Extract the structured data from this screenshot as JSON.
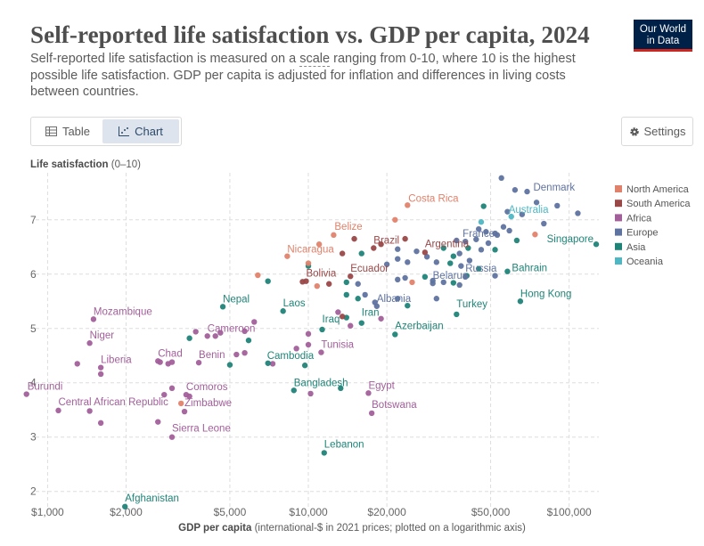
{
  "header": {
    "title": "Self-reported life satisfaction vs. GDP per capita, 2024",
    "subtitle_before": "Self-reported life satisfaction is measured on a ",
    "subtitle_link": "scale",
    "subtitle_after": " ranging from 0-10, where 10 is the highest possible life satisfaction. GDP per capita is adjusted for inflation and differences in living costs between countries.",
    "logo_line1": "Our World",
    "logo_line2": "in Data"
  },
  "toolbar": {
    "table_label": "Table",
    "chart_label": "Chart",
    "settings_label": "Settings"
  },
  "colors": {
    "North America": "#e0826b",
    "South America": "#9a4747",
    "Africa": "#a25f9a",
    "Europe": "#5f73a0",
    "Asia": "#1f8478",
    "Oceania": "#4db7c4"
  },
  "chart_data": {
    "type": "scatter",
    "title": "Self-reported life satisfaction vs. GDP per capita, 2024",
    "ylabel_bold": "Life satisfaction",
    "ylabel_rest": " (0–10)",
    "xlabel_bold": "GDP per capita",
    "xlabel_rest": " (international-$ in 2021 prices; plotted on a logarithmic axis)",
    "x_scale": "log",
    "xlim": [
      900,
      130000
    ],
    "ylim": [
      1.7,
      7.8
    ],
    "x_ticks": [
      1000,
      2000,
      5000,
      10000,
      20000,
      50000,
      100000
    ],
    "x_tick_labels": [
      "$1,000",
      "$2,000",
      "$5,000",
      "$10,000",
      "$20,000",
      "$50,000",
      "$100,000"
    ],
    "y_ticks": [
      2,
      3,
      4,
      5,
      6,
      7
    ],
    "legend_position": "top-right",
    "legend": [
      "North America",
      "South America",
      "Africa",
      "Europe",
      "Asia",
      "Oceania"
    ],
    "points": [
      {
        "label": "Denmark",
        "gdp": 69000,
        "ls": 7.52,
        "region": "Europe"
      },
      {
        "label": "Costa Rica",
        "gdp": 24000,
        "ls": 7.27,
        "region": "North America"
      },
      {
        "label": "Australia",
        "gdp": 60000,
        "ls": 7.06,
        "region": "Oceania"
      },
      {
        "label": "Singapore",
        "gdp": 127000,
        "ls": 6.55,
        "region": "Asia"
      },
      {
        "label": "France",
        "gdp": 53000,
        "ls": 6.72,
        "region": "Europe"
      },
      {
        "label": "Belize",
        "gdp": 12500,
        "ls": 6.72,
        "region": "North America"
      },
      {
        "label": "Brazil",
        "gdp": 17800,
        "ls": 6.48,
        "region": "South America"
      },
      {
        "label": "Argentina",
        "gdp": 28000,
        "ls": 6.4,
        "region": "South America"
      },
      {
        "label": "Nicaragua",
        "gdp": 8300,
        "ls": 6.33,
        "region": "North America"
      },
      {
        "label": "Bahrain",
        "gdp": 58000,
        "ls": 6.05,
        "region": "Asia"
      },
      {
        "label": "Bolivia",
        "gdp": 9800,
        "ls": 5.87,
        "region": "South America"
      },
      {
        "label": "Ecuador",
        "gdp": 14500,
        "ls": 5.96,
        "region": "South America"
      },
      {
        "label": "Belarus",
        "gdp": 30000,
        "ls": 5.83,
        "region": "Europe"
      },
      {
        "label": "Russia",
        "gdp": 40000,
        "ls": 5.95,
        "region": "Europe"
      },
      {
        "label": "Hong Kong",
        "gdp": 65000,
        "ls": 5.5,
        "region": "Asia"
      },
      {
        "label": "Albania",
        "gdp": 18300,
        "ls": 5.41,
        "region": "Europe"
      },
      {
        "label": "Turkey",
        "gdp": 37000,
        "ls": 5.26,
        "region": "Asia"
      },
      {
        "label": "Laos",
        "gdp": 8000,
        "ls": 5.32,
        "region": "Asia"
      },
      {
        "label": "Nepal",
        "gdp": 4700,
        "ls": 5.4,
        "region": "Asia"
      },
      {
        "label": "Mozambique",
        "gdp": 1500,
        "ls": 5.17,
        "region": "Africa"
      },
      {
        "label": "Iran",
        "gdp": 16000,
        "ls": 5.1,
        "region": "Asia"
      },
      {
        "label": "Iraq",
        "gdp": 11300,
        "ls": 4.98,
        "region": "Asia"
      },
      {
        "label": "Azerbaijan",
        "gdp": 21500,
        "ls": 4.89,
        "region": "Asia"
      },
      {
        "label": "Cameroon",
        "gdp": 4100,
        "ls": 4.86,
        "region": "Africa"
      },
      {
        "label": "Niger",
        "gdp": 1450,
        "ls": 4.73,
        "region": "Africa"
      },
      {
        "label": "Tunisia",
        "gdp": 11200,
        "ls": 4.56,
        "region": "Africa"
      },
      {
        "label": "Chad",
        "gdp": 2650,
        "ls": 4.4,
        "region": "Africa"
      },
      {
        "label": "Benin",
        "gdp": 3800,
        "ls": 4.37,
        "region": "Africa"
      },
      {
        "label": "Cambodia",
        "gdp": 7000,
        "ls": 4.36,
        "region": "Asia"
      },
      {
        "label": "Liberia",
        "gdp": 1600,
        "ls": 4.28,
        "region": "Africa"
      },
      {
        "label": "Bangladesh",
        "gdp": 8800,
        "ls": 3.86,
        "region": "Asia"
      },
      {
        "label": "Egypt",
        "gdp": 17000,
        "ls": 3.81,
        "region": "Africa"
      },
      {
        "label": "Comoros",
        "gdp": 3400,
        "ls": 3.78,
        "region": "Africa"
      },
      {
        "label": "Burundi",
        "gdp": 830,
        "ls": 3.79,
        "region": "Africa"
      },
      {
        "label": "Central African Republic",
        "gdp": 1100,
        "ls": 3.49,
        "region": "Africa"
      },
      {
        "label": "Zimbabwe",
        "gdp": 3350,
        "ls": 3.47,
        "region": "Africa"
      },
      {
        "label": "Botswana",
        "gdp": 17500,
        "ls": 3.44,
        "region": "Africa"
      },
      {
        "label": "Sierra Leone",
        "gdp": 3000,
        "ls": 3.0,
        "region": "Africa"
      },
      {
        "label": "Lebanon",
        "gdp": 11500,
        "ls": 2.71,
        "region": "Asia"
      },
      {
        "label": "Afghanistan",
        "gdp": 1980,
        "ls": 1.72,
        "region": "Asia"
      },
      {
        "label": "",
        "gdp": 55000,
        "ls": 7.77,
        "region": "Europe"
      },
      {
        "label": "",
        "gdp": 62000,
        "ls": 7.55,
        "region": "Europe"
      },
      {
        "label": "",
        "gdp": 90000,
        "ls": 7.26,
        "region": "Europe"
      },
      {
        "label": "",
        "gdp": 75000,
        "ls": 7.32,
        "region": "Europe"
      },
      {
        "label": "",
        "gdp": 58000,
        "ls": 7.15,
        "region": "Europe"
      },
      {
        "label": "",
        "gdp": 66000,
        "ls": 7.1,
        "region": "Europe"
      },
      {
        "label": "",
        "gdp": 108000,
        "ls": 7.12,
        "region": "Europe"
      },
      {
        "label": "",
        "gdp": 47000,
        "ls": 7.25,
        "region": "Asia"
      },
      {
        "label": "",
        "gdp": 46000,
        "ls": 6.96,
        "region": "Oceania"
      },
      {
        "label": "",
        "gdp": 56000,
        "ls": 6.87,
        "region": "Europe"
      },
      {
        "label": "",
        "gdp": 45000,
        "ls": 6.83,
        "region": "Europe"
      },
      {
        "label": "",
        "gdp": 48000,
        "ls": 6.78,
        "region": "Europe"
      },
      {
        "label": "",
        "gdp": 52000,
        "ls": 6.75,
        "region": "Europe"
      },
      {
        "label": "",
        "gdp": 59000,
        "ls": 6.8,
        "region": "Europe"
      },
      {
        "label": "",
        "gdp": 74000,
        "ls": 6.73,
        "region": "North America"
      },
      {
        "label": "",
        "gdp": 80000,
        "ls": 6.93,
        "region": "Europe"
      },
      {
        "label": "",
        "gdp": 63000,
        "ls": 6.62,
        "region": "Asia"
      },
      {
        "label": "",
        "gdp": 44000,
        "ls": 6.64,
        "region": "Europe"
      },
      {
        "label": "",
        "gdp": 40000,
        "ls": 6.6,
        "region": "Europe"
      },
      {
        "label": "",
        "gdp": 37000,
        "ls": 6.62,
        "region": "Europe"
      },
      {
        "label": "",
        "gdp": 49000,
        "ls": 6.57,
        "region": "Europe"
      },
      {
        "label": "",
        "gdp": 41000,
        "ls": 6.48,
        "region": "Asia"
      },
      {
        "label": "",
        "gdp": 46000,
        "ls": 6.45,
        "region": "Europe"
      },
      {
        "label": "",
        "gdp": 33000,
        "ls": 6.48,
        "region": "Asia"
      },
      {
        "label": "",
        "gdp": 22000,
        "ls": 6.46,
        "region": "Europe"
      },
      {
        "label": "",
        "gdp": 52000,
        "ls": 6.45,
        "region": "Asia"
      },
      {
        "label": "",
        "gdp": 38000,
        "ls": 6.38,
        "region": "Europe"
      },
      {
        "label": "",
        "gdp": 26000,
        "ls": 6.42,
        "region": "Europe"
      },
      {
        "label": "",
        "gdp": 36000,
        "ls": 6.33,
        "region": "Asia"
      },
      {
        "label": "",
        "gdp": 41500,
        "ls": 6.25,
        "region": "Europe"
      },
      {
        "label": "",
        "gdp": 28500,
        "ls": 6.32,
        "region": "Europe"
      },
      {
        "label": "",
        "gdp": 35000,
        "ls": 6.2,
        "region": "Asia"
      },
      {
        "label": "",
        "gdp": 31000,
        "ls": 6.22,
        "region": "Europe"
      },
      {
        "label": "",
        "gdp": 38500,
        "ls": 6.15,
        "region": "Europe"
      },
      {
        "label": "",
        "gdp": 45000,
        "ls": 6.1,
        "region": "Asia"
      },
      {
        "label": "",
        "gdp": 24000,
        "ls": 6.22,
        "region": "Europe"
      },
      {
        "label": "",
        "gdp": 22000,
        "ls": 6.28,
        "region": "Europe"
      },
      {
        "label": "",
        "gdp": 20000,
        "ls": 6.18,
        "region": "Europe"
      },
      {
        "label": "",
        "gdp": 52000,
        "ls": 5.97,
        "region": "Europe"
      },
      {
        "label": "",
        "gdp": 40500,
        "ls": 5.97,
        "region": "Asia"
      },
      {
        "label": "",
        "gdp": 23500,
        "ls": 5.93,
        "region": "Europe"
      },
      {
        "label": "",
        "gdp": 22000,
        "ls": 5.9,
        "region": "Europe"
      },
      {
        "label": "",
        "gdp": 28000,
        "ls": 5.95,
        "region": "Asia"
      },
      {
        "label": "",
        "gdp": 33000,
        "ls": 5.85,
        "region": "Europe"
      },
      {
        "label": "",
        "gdp": 30000,
        "ls": 5.88,
        "region": "Europe"
      },
      {
        "label": "",
        "gdp": 36000,
        "ls": 5.84,
        "region": "Asia"
      },
      {
        "label": "",
        "gdp": 25000,
        "ls": 5.85,
        "region": "North America"
      },
      {
        "label": "",
        "gdp": 38000,
        "ls": 5.8,
        "region": "Europe"
      },
      {
        "label": "",
        "gdp": 16000,
        "ls": 6.38,
        "region": "Asia"
      },
      {
        "label": "",
        "gdp": 13500,
        "ls": 6.38,
        "region": "South America"
      },
      {
        "label": "",
        "gdp": 10000,
        "ls": 6.15,
        "region": "Asia"
      },
      {
        "label": "",
        "gdp": 10000,
        "ls": 6.2,
        "region": "North America"
      },
      {
        "label": "",
        "gdp": 19000,
        "ls": 6.55,
        "region": "South America"
      },
      {
        "label": "",
        "gdp": 21500,
        "ls": 7.0,
        "region": "North America"
      },
      {
        "label": "",
        "gdp": 23500,
        "ls": 6.65,
        "region": "South America"
      },
      {
        "label": "",
        "gdp": 15000,
        "ls": 6.65,
        "region": "South America"
      },
      {
        "label": "",
        "gdp": 11000,
        "ls": 6.55,
        "region": "North America"
      },
      {
        "label": "",
        "gdp": 6400,
        "ls": 5.98,
        "region": "North America"
      },
      {
        "label": "",
        "gdp": 7000,
        "ls": 5.87,
        "region": "Asia"
      },
      {
        "label": "",
        "gdp": 9500,
        "ls": 5.86,
        "region": "South America"
      },
      {
        "label": "",
        "gdp": 10800,
        "ls": 5.78,
        "region": "North America"
      },
      {
        "label": "",
        "gdp": 12000,
        "ls": 5.82,
        "region": "South America"
      },
      {
        "label": "",
        "gdp": 14000,
        "ls": 5.85,
        "region": "Asia"
      },
      {
        "label": "",
        "gdp": 15500,
        "ls": 5.82,
        "region": "Europe"
      },
      {
        "label": "",
        "gdp": 16500,
        "ls": 5.62,
        "region": "Europe"
      },
      {
        "label": "",
        "gdp": 14000,
        "ls": 5.62,
        "region": "Asia"
      },
      {
        "label": "",
        "gdp": 15500,
        "ls": 5.55,
        "region": "Asia"
      },
      {
        "label": "",
        "gdp": 18000,
        "ls": 5.48,
        "region": "Europe"
      },
      {
        "label": "",
        "gdp": 22000,
        "ls": 5.55,
        "region": "Europe"
      },
      {
        "label": "",
        "gdp": 24000,
        "ls": 5.42,
        "region": "Asia"
      },
      {
        "label": "",
        "gdp": 31000,
        "ls": 5.55,
        "region": "Europe"
      },
      {
        "label": "",
        "gdp": 13000,
        "ls": 5.3,
        "region": "Africa"
      },
      {
        "label": "",
        "gdp": 14000,
        "ls": 5.2,
        "region": "Asia"
      },
      {
        "label": "",
        "gdp": 13500,
        "ls": 5.22,
        "region": "South America"
      },
      {
        "label": "",
        "gdp": 14500,
        "ls": 5.05,
        "region": "Africa"
      },
      {
        "label": "",
        "gdp": 19000,
        "ls": 5.18,
        "region": "Africa"
      },
      {
        "label": "",
        "gdp": 6200,
        "ls": 5.12,
        "region": "Africa"
      },
      {
        "label": "",
        "gdp": 5700,
        "ls": 4.95,
        "region": "Africa"
      },
      {
        "label": "",
        "gdp": 4600,
        "ls": 4.92,
        "region": "Africa"
      },
      {
        "label": "",
        "gdp": 3700,
        "ls": 4.94,
        "region": "Africa"
      },
      {
        "label": "",
        "gdp": 3500,
        "ls": 4.82,
        "region": "Asia"
      },
      {
        "label": "",
        "gdp": 4400,
        "ls": 4.86,
        "region": "Africa"
      },
      {
        "label": "",
        "gdp": 5900,
        "ls": 4.78,
        "region": "Asia"
      },
      {
        "label": "",
        "gdp": 10000,
        "ls": 4.9,
        "region": "Africa"
      },
      {
        "label": "",
        "gdp": 10000,
        "ls": 4.7,
        "region": "Africa"
      },
      {
        "label": "",
        "gdp": 9000,
        "ls": 4.63,
        "region": "Africa"
      },
      {
        "label": "",
        "gdp": 5300,
        "ls": 4.52,
        "region": "Africa"
      },
      {
        "label": "",
        "gdp": 5700,
        "ls": 4.55,
        "region": "Africa"
      },
      {
        "label": "",
        "gdp": 2700,
        "ls": 4.38,
        "region": "Africa"
      },
      {
        "label": "",
        "gdp": 2900,
        "ls": 4.35,
        "region": "Africa"
      },
      {
        "label": "",
        "gdp": 3000,
        "ls": 4.38,
        "region": "Africa"
      },
      {
        "label": "",
        "gdp": 1300,
        "ls": 4.35,
        "region": "Africa"
      },
      {
        "label": "",
        "gdp": 1600,
        "ls": 4.16,
        "region": "Africa"
      },
      {
        "label": "",
        "gdp": 5000,
        "ls": 4.33,
        "region": "Asia"
      },
      {
        "label": "",
        "gdp": 7300,
        "ls": 4.35,
        "region": "Africa"
      },
      {
        "label": "",
        "gdp": 9700,
        "ls": 4.32,
        "region": "Asia"
      },
      {
        "label": "",
        "gdp": 2800,
        "ls": 3.78,
        "region": "Africa"
      },
      {
        "label": "",
        "gdp": 3000,
        "ls": 3.9,
        "region": "Africa"
      },
      {
        "label": "",
        "gdp": 3500,
        "ls": 3.75,
        "region": "Africa"
      },
      {
        "label": "",
        "gdp": 3250,
        "ls": 3.62,
        "region": "North America"
      },
      {
        "label": "",
        "gdp": 10200,
        "ls": 3.8,
        "region": "Africa"
      },
      {
        "label": "",
        "gdp": 13300,
        "ls": 3.9,
        "region": "Asia"
      },
      {
        "label": "",
        "gdp": 2650,
        "ls": 3.28,
        "region": "Africa"
      },
      {
        "label": "",
        "gdp": 1600,
        "ls": 3.26,
        "region": "Africa"
      },
      {
        "label": "",
        "gdp": 1450,
        "ls": 3.48,
        "region": "Africa"
      }
    ]
  }
}
